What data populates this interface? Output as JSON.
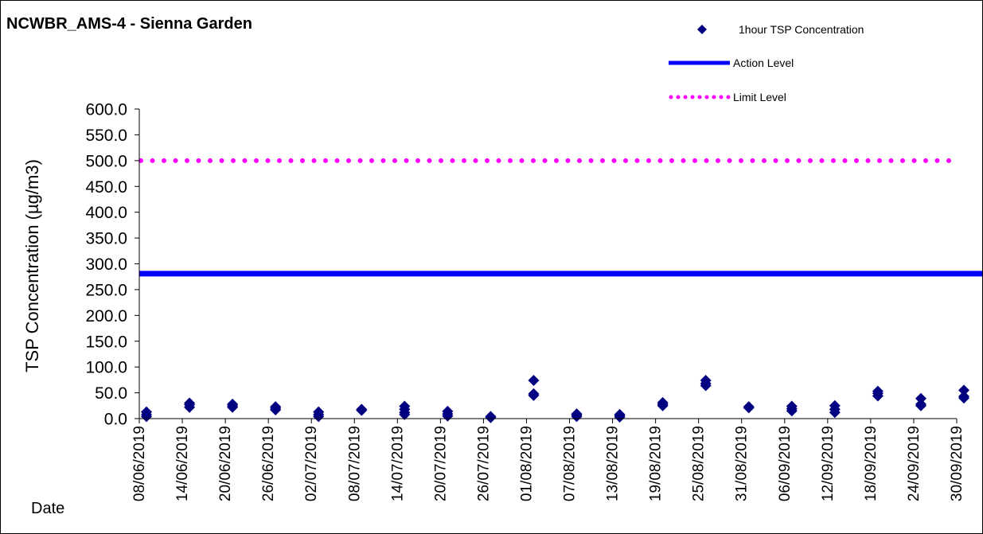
{
  "chart_data": {
    "type": "scatter",
    "title": "NCWBR_AMS-4 - Sienna Garden",
    "xlabel": "Date",
    "ylabel": "TSP Concentration (µg/m3)",
    "ylim": [
      0,
      600
    ],
    "yticks": [
      "0.0",
      "50.0",
      "100.0",
      "150.0",
      "200.0",
      "250.0",
      "300.0",
      "350.0",
      "400.0",
      "450.0",
      "500.0",
      "550.0",
      "600.0"
    ],
    "xlim": [
      "2019-06-08",
      "2019-09-30"
    ],
    "xticks": [
      "08/06/2019",
      "14/06/2019",
      "20/06/2019",
      "26/06/2019",
      "02/07/2019",
      "08/07/2019",
      "14/07/2019",
      "20/07/2019",
      "26/07/2019",
      "01/08/2019",
      "07/08/2019",
      "13/08/2019",
      "19/08/2019",
      "25/08/2019",
      "31/08/2019",
      "06/09/2019",
      "12/09/2019",
      "18/09/2019",
      "24/09/2019",
      "30/09/2019"
    ],
    "grid": false,
    "legend": {
      "placement": "top-right"
    },
    "series": [
      {
        "name": "1hour TSP Concentration",
        "type": "scatter",
        "color": "#000080",
        "points": [
          {
            "x": "2019-06-09",
            "y": 4
          },
          {
            "x": "2019-06-09",
            "y": 8
          },
          {
            "x": "2019-06-09",
            "y": 13
          },
          {
            "x": "2019-06-15",
            "y": 22
          },
          {
            "x": "2019-06-15",
            "y": 27
          },
          {
            "x": "2019-06-15",
            "y": 30
          },
          {
            "x": "2019-06-21",
            "y": 22
          },
          {
            "x": "2019-06-21",
            "y": 25
          },
          {
            "x": "2019-06-21",
            "y": 28
          },
          {
            "x": "2019-06-27",
            "y": 17
          },
          {
            "x": "2019-06-27",
            "y": 20
          },
          {
            "x": "2019-06-27",
            "y": 23
          },
          {
            "x": "2019-07-03",
            "y": 4
          },
          {
            "x": "2019-07-03",
            "y": 8
          },
          {
            "x": "2019-07-03",
            "y": 13
          },
          {
            "x": "2019-07-09",
            "y": 16
          },
          {
            "x": "2019-07-09",
            "y": 18
          },
          {
            "x": "2019-07-15",
            "y": 8
          },
          {
            "x": "2019-07-15",
            "y": 12
          },
          {
            "x": "2019-07-15",
            "y": 18
          },
          {
            "x": "2019-07-15",
            "y": 24
          },
          {
            "x": "2019-07-21",
            "y": 5
          },
          {
            "x": "2019-07-21",
            "y": 9
          },
          {
            "x": "2019-07-21",
            "y": 14
          },
          {
            "x": "2019-07-27",
            "y": 2
          },
          {
            "x": "2019-07-27",
            "y": 4
          },
          {
            "x": "2019-08-02",
            "y": 45
          },
          {
            "x": "2019-08-02",
            "y": 48
          },
          {
            "x": "2019-08-02",
            "y": 74
          },
          {
            "x": "2019-08-08",
            "y": 4
          },
          {
            "x": "2019-08-08",
            "y": 7
          },
          {
            "x": "2019-08-08",
            "y": 9
          },
          {
            "x": "2019-08-14",
            "y": 3
          },
          {
            "x": "2019-08-14",
            "y": 6
          },
          {
            "x": "2019-08-14",
            "y": 8
          },
          {
            "x": "2019-08-20",
            "y": 25
          },
          {
            "x": "2019-08-20",
            "y": 28
          },
          {
            "x": "2019-08-20",
            "y": 31
          },
          {
            "x": "2019-08-26",
            "y": 64
          },
          {
            "x": "2019-08-26",
            "y": 68
          },
          {
            "x": "2019-08-26",
            "y": 74
          },
          {
            "x": "2019-09-01",
            "y": 21
          },
          {
            "x": "2019-09-01",
            "y": 23
          },
          {
            "x": "2019-09-07",
            "y": 15
          },
          {
            "x": "2019-09-07",
            "y": 19
          },
          {
            "x": "2019-09-07",
            "y": 24
          },
          {
            "x": "2019-09-13",
            "y": 12
          },
          {
            "x": "2019-09-13",
            "y": 18
          },
          {
            "x": "2019-09-13",
            "y": 25
          },
          {
            "x": "2019-09-19",
            "y": 44
          },
          {
            "x": "2019-09-19",
            "y": 49
          },
          {
            "x": "2019-09-19",
            "y": 53
          },
          {
            "x": "2019-09-25",
            "y": 25
          },
          {
            "x": "2019-09-25",
            "y": 28
          },
          {
            "x": "2019-09-25",
            "y": 39
          },
          {
            "x": "2019-10-01",
            "y": 40
          },
          {
            "x": "2019-10-01",
            "y": 43
          },
          {
            "x": "2019-10-01",
            "y": 55
          }
        ]
      },
      {
        "name": "Action Level",
        "type": "line",
        "style": "solid",
        "color": "#0000ff",
        "y": 281
      },
      {
        "name": "Limit Level",
        "type": "line",
        "style": "dotted",
        "color": "#ff00ff",
        "y": 500
      }
    ]
  }
}
